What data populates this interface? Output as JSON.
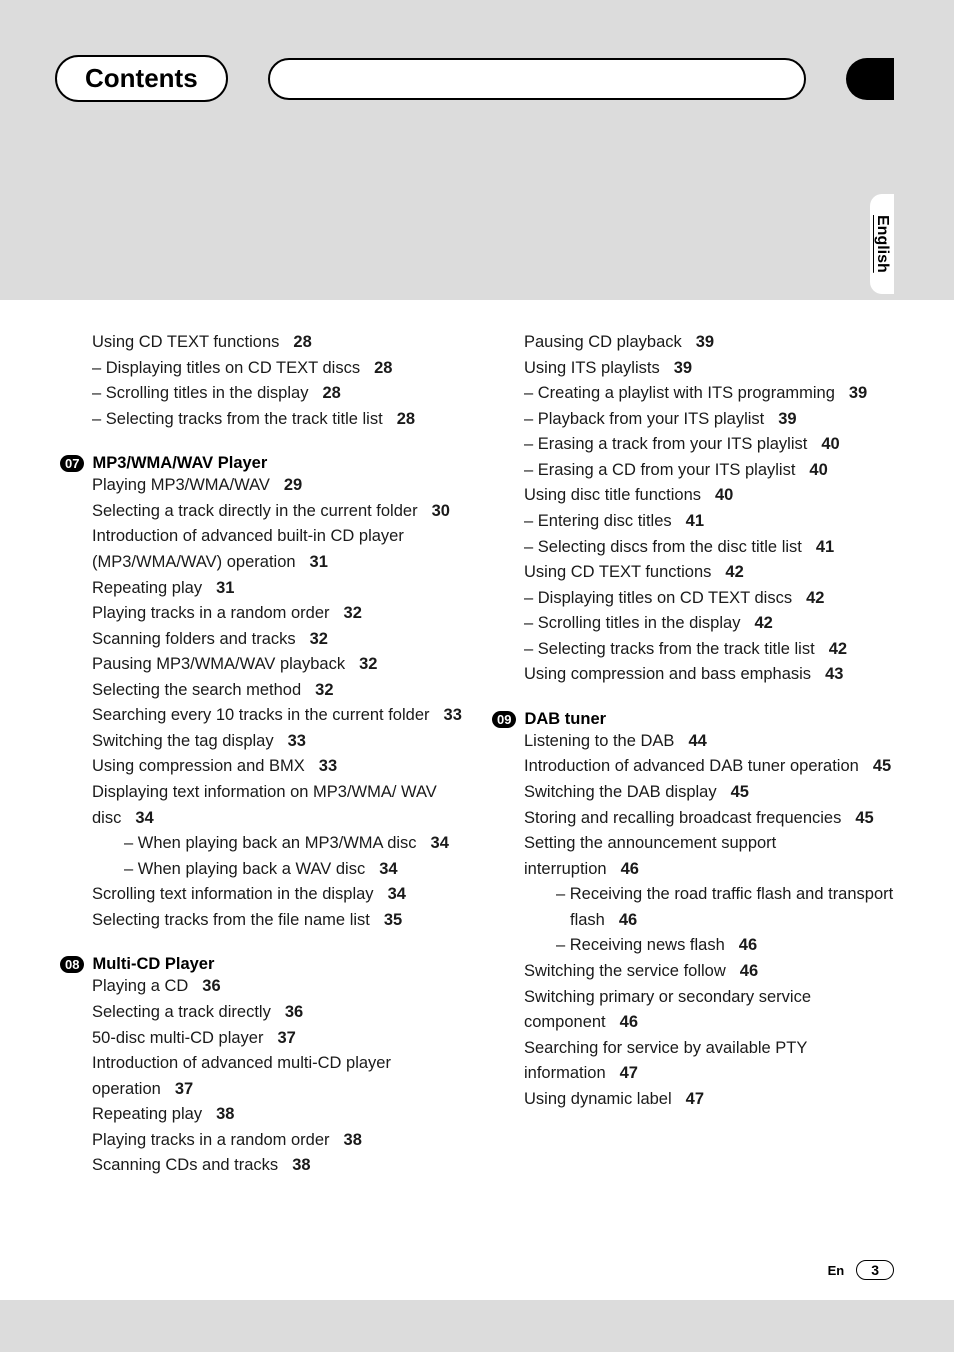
{
  "header": {
    "title": "Contents"
  },
  "language_tab": "English",
  "footer": {
    "lang_abbr": "En",
    "page_number": "3"
  },
  "col_left": {
    "pre_section": {
      "items": [
        {
          "text": "Using CD TEXT functions",
          "pg": "28",
          "sub": [
            {
              "text": "Displaying titles on CD TEXT discs",
              "pg": "28"
            },
            {
              "text": "Scrolling titles in the display",
              "pg": "28"
            },
            {
              "text": "Selecting tracks from the track title list",
              "pg": "28"
            }
          ]
        }
      ]
    },
    "sections": [
      {
        "num": "07",
        "title": "MP3/WMA/WAV Player",
        "items": [
          {
            "text": "Playing MP3/WMA/WAV",
            "pg": "29"
          },
          {
            "text": "Selecting a track directly in the current folder",
            "pg": "30"
          },
          {
            "text": "Introduction of advanced built-in CD player (MP3/WMA/WAV) operation",
            "pg": "31"
          },
          {
            "text": "Repeating play",
            "pg": "31"
          },
          {
            "text": "Playing tracks in a random order",
            "pg": "32"
          },
          {
            "text": "Scanning folders and tracks",
            "pg": "32"
          },
          {
            "text": "Pausing MP3/WMA/WAV playback",
            "pg": "32"
          },
          {
            "text": "Selecting the search method",
            "pg": "32"
          },
          {
            "text": "Searching every 10 tracks in the current folder",
            "pg": "33"
          },
          {
            "text": "Switching the tag display",
            "pg": "33"
          },
          {
            "text": "Using compression and BMX",
            "pg": "33"
          },
          {
            "text": "Displaying text information on MP3/WMA/ WAV disc",
            "pg": "34",
            "sub": [
              {
                "text": "When playing back an MP3/WMA disc",
                "pg": "34"
              },
              {
                "text": "When playing back a WAV disc",
                "pg": "34"
              }
            ]
          },
          {
            "text": "Scrolling text information in the display",
            "pg": "34"
          },
          {
            "text": "Selecting tracks from the file name list",
            "pg": "35"
          }
        ]
      },
      {
        "num": "08",
        "title": "Multi-CD Player",
        "items": [
          {
            "text": "Playing a CD",
            "pg": "36"
          },
          {
            "text": "Selecting a track directly",
            "pg": "36"
          },
          {
            "text": "50-disc multi-CD player",
            "pg": "37"
          },
          {
            "text": "Introduction of advanced multi-CD player operation",
            "pg": "37"
          },
          {
            "text": "Repeating play",
            "pg": "38"
          },
          {
            "text": "Playing tracks in a random order",
            "pg": "38"
          },
          {
            "text": "Scanning CDs and tracks",
            "pg": "38"
          }
        ]
      }
    ]
  },
  "col_right": {
    "pre_section": {
      "items": [
        {
          "text": "Pausing CD playback",
          "pg": "39"
        },
        {
          "text": "Using ITS playlists",
          "pg": "39",
          "sub": [
            {
              "text": "Creating a playlist with ITS programming",
              "pg": "39"
            },
            {
              "text": "Playback from your ITS playlist",
              "pg": "39"
            },
            {
              "text": "Erasing a track from your ITS playlist",
              "pg": "40"
            },
            {
              "text": "Erasing a CD from your ITS playlist",
              "pg": "40"
            }
          ]
        },
        {
          "text": "Using disc title functions",
          "pg": "40",
          "sub": [
            {
              "text": "Entering disc titles",
              "pg": "41"
            },
            {
              "text": "Selecting discs from the disc title list",
              "pg": "41"
            }
          ]
        },
        {
          "text": "Using CD TEXT functions",
          "pg": "42",
          "sub": [
            {
              "text": "Displaying titles on CD TEXT discs",
              "pg": "42"
            },
            {
              "text": "Scrolling titles in the display",
              "pg": "42"
            },
            {
              "text": "Selecting tracks from the track title list",
              "pg": "42"
            }
          ]
        },
        {
          "text": "Using compression and bass emphasis",
          "pg": "43"
        }
      ]
    },
    "sections": [
      {
        "num": "09",
        "title": "DAB tuner",
        "items": [
          {
            "text": "Listening to the DAB",
            "pg": "44"
          },
          {
            "text": "Introduction of advanced DAB tuner operation",
            "pg": "45"
          },
          {
            "text": "Switching the DAB display",
            "pg": "45"
          },
          {
            "text": "Storing and recalling broadcast frequencies",
            "pg": "45"
          },
          {
            "text": "Setting the announcement support interruption",
            "pg": "46",
            "sub": [
              {
                "text": "Receiving the road traffic flash and transport flash",
                "pg": "46"
              },
              {
                "text": "Receiving news flash",
                "pg": "46"
              }
            ]
          },
          {
            "text": "Switching the service follow",
            "pg": "46"
          },
          {
            "text": "Switching primary or secondary service component",
            "pg": "46"
          },
          {
            "text": "Searching for service by available PTY information",
            "pg": "47"
          },
          {
            "text": "Using dynamic label",
            "pg": "47"
          }
        ]
      }
    ]
  }
}
